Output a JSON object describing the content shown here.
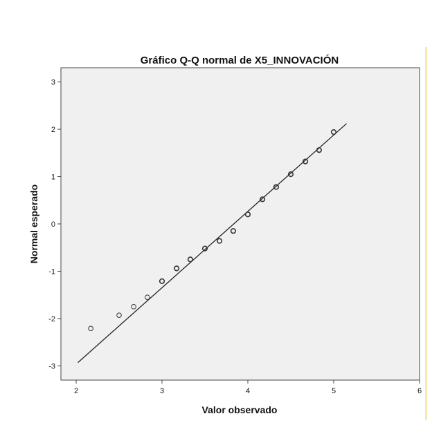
{
  "chart_data": {
    "type": "scatter",
    "title": "Gráfico Q-Q normal de X5_INNOVACIÓN",
    "xlabel": "Valor observado",
    "ylabel": "Normal esperado",
    "xlim": [
      2,
      6
    ],
    "ylim": [
      -3.3,
      3.3
    ],
    "xticks": [
      "2",
      "3",
      "4",
      "5",
      "6"
    ],
    "yticks": [
      "3",
      "2",
      "1",
      "0",
      "-1",
      "-2",
      "-3"
    ],
    "grid": false,
    "points": [
      {
        "x": 2.17,
        "y": -2.21
      },
      {
        "x": 2.5,
        "y": -1.93
      },
      {
        "x": 2.67,
        "y": -1.75
      },
      {
        "x": 2.83,
        "y": -1.55
      },
      {
        "x": 3.0,
        "y": -1.21
      },
      {
        "x": 3.17,
        "y": -0.94
      },
      {
        "x": 3.33,
        "y": -0.75
      },
      {
        "x": 3.5,
        "y": -0.52
      },
      {
        "x": 3.67,
        "y": -0.36
      },
      {
        "x": 3.83,
        "y": -0.15
      },
      {
        "x": 4.0,
        "y": 0.2
      },
      {
        "x": 4.17,
        "y": 0.52
      },
      {
        "x": 4.33,
        "y": 0.78
      },
      {
        "x": 4.5,
        "y": 1.05
      },
      {
        "x": 4.67,
        "y": 1.32
      },
      {
        "x": 4.83,
        "y": 1.56
      },
      {
        "x": 5.0,
        "y": 1.94
      }
    ],
    "reference_line": {
      "x": [
        2.02,
        5.15
      ],
      "y": [
        -2.93,
        2.12
      ]
    },
    "colors": {
      "plot_background": "#f0f0f0",
      "marker": "#333333",
      "line": "#222222"
    }
  }
}
